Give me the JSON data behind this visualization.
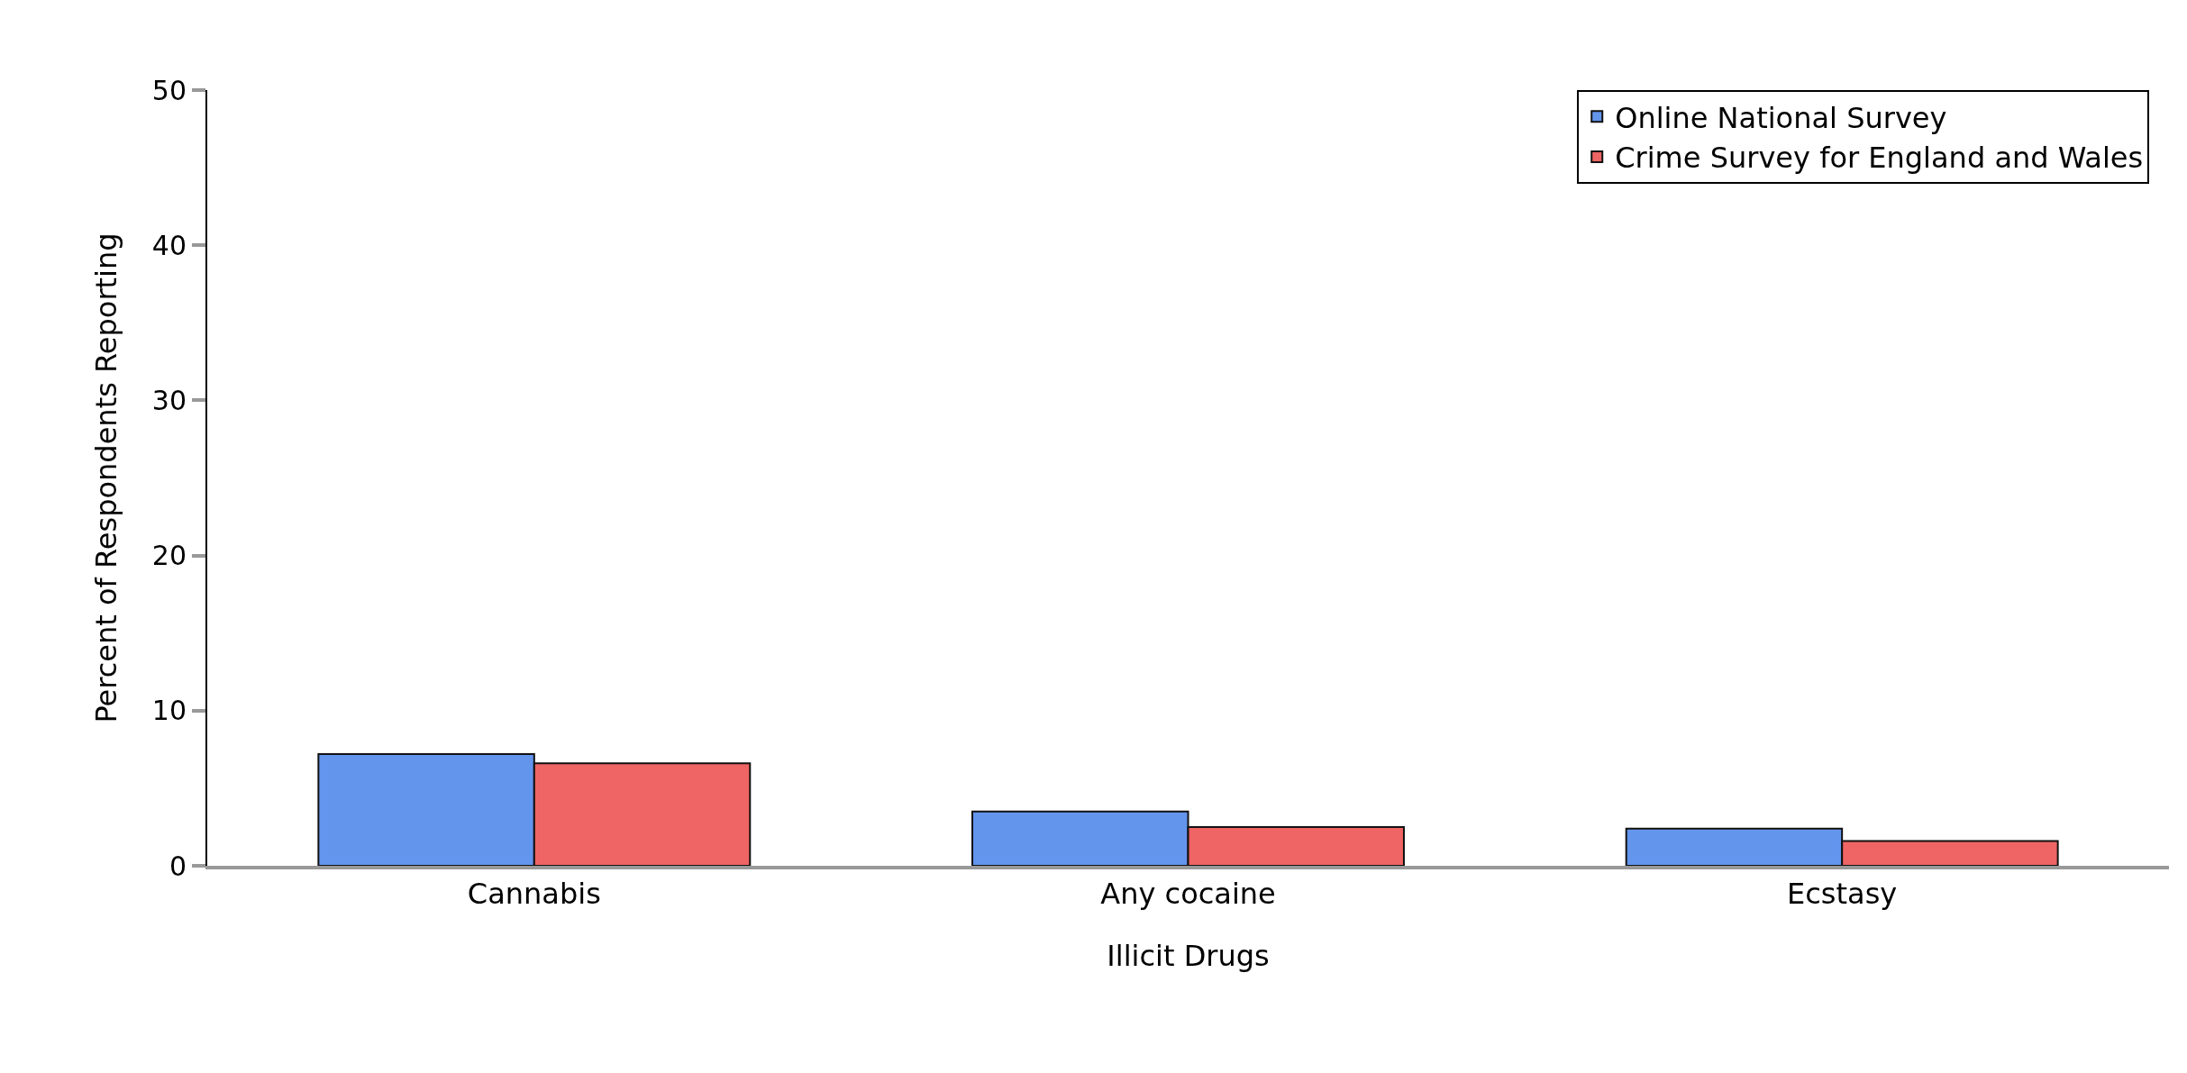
{
  "chart_data": {
    "type": "bar",
    "xlabel": "Illicit Drugs",
    "ylabel": "Percent of Respondents Reporting",
    "categories": [
      "Cannabis",
      "Any cocaine",
      "Ecstasy"
    ],
    "series": [
      {
        "name": "Online National Survey",
        "color": "#6495ed",
        "values": [
          7.2,
          3.5,
          2.4
        ]
      },
      {
        "name": "Crime Survey for England and Wales",
        "color": "#ef6464",
        "values": [
          6.6,
          2.5,
          1.6
        ]
      }
    ],
    "ylim": [
      0,
      50
    ],
    "yticks": [
      0,
      10,
      20,
      30,
      40,
      50
    ],
    "grid": false,
    "legend": "top right"
  }
}
